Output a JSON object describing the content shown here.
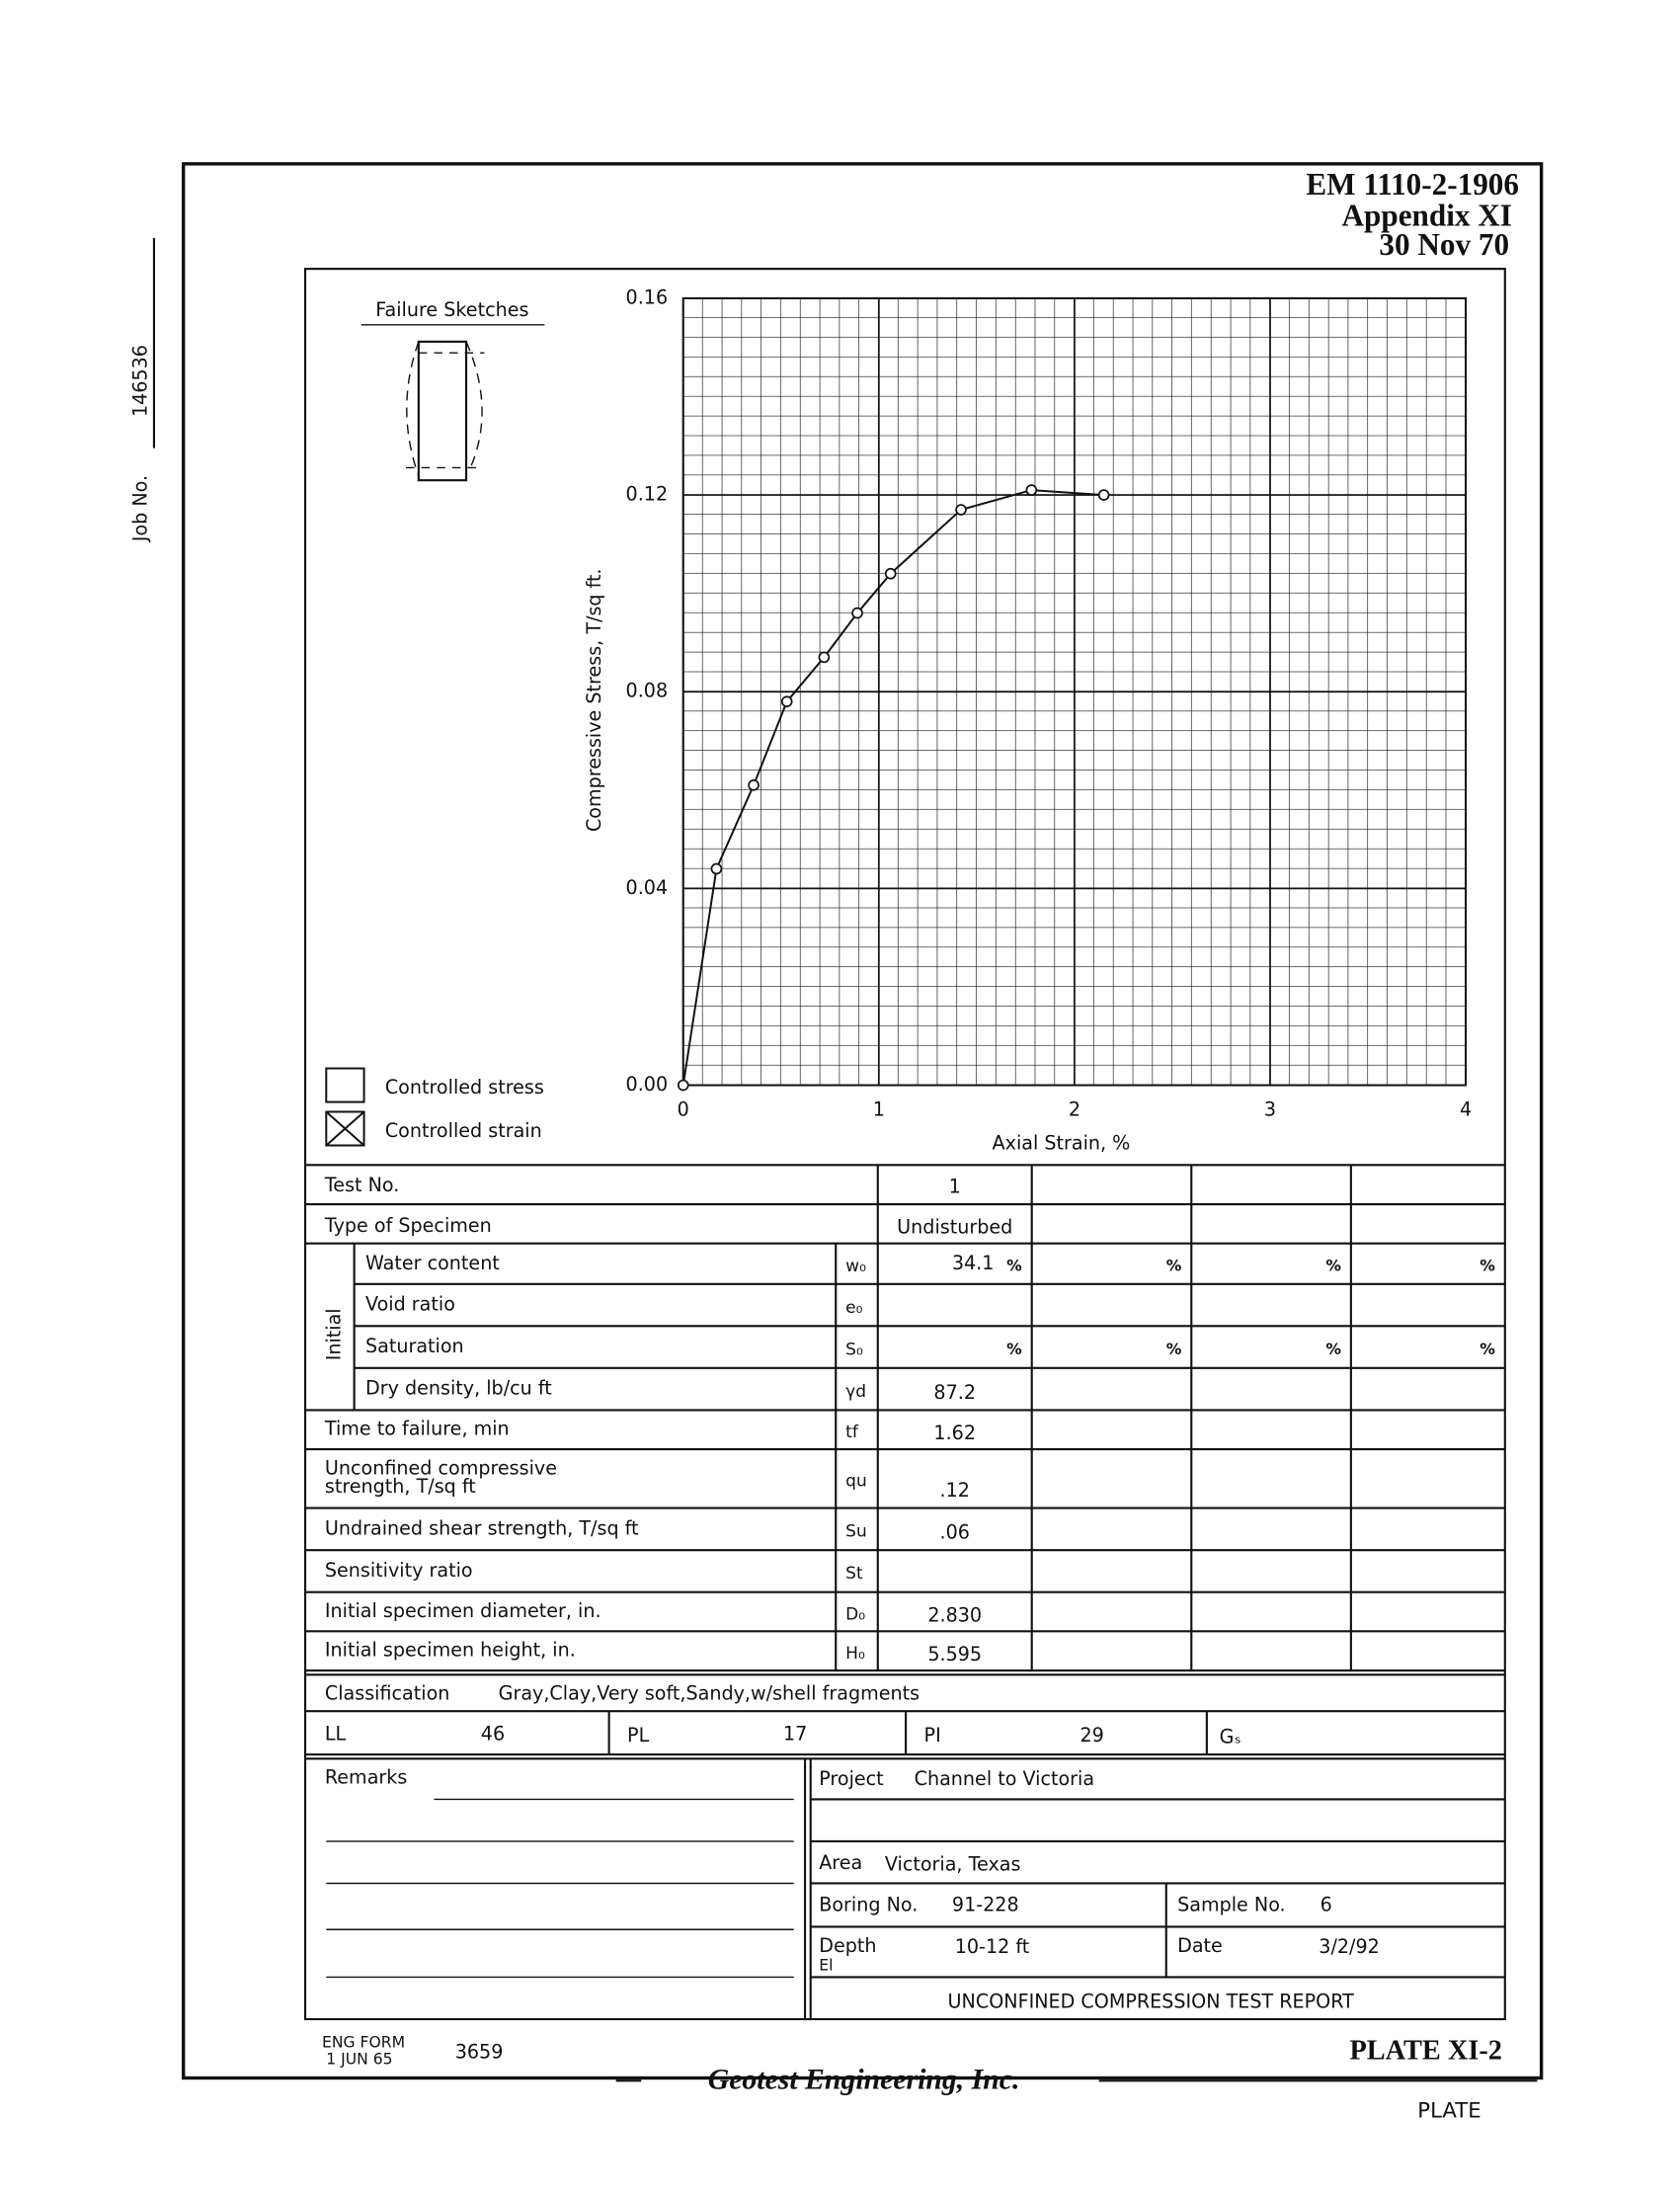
{
  "header": {
    "doc_no": "EM 1110-2-1906",
    "appendix": "Appendix XI",
    "date": "30 Nov 70"
  },
  "job": {
    "label": "Job No.",
    "number": "146536"
  },
  "failure_sketches": {
    "title": "Failure Sketches"
  },
  "test_mode": {
    "options": [
      {
        "label": "Controlled stress",
        "checked": false
      },
      {
        "label": "Controlled strain",
        "checked": true
      }
    ]
  },
  "chart_data": {
    "type": "line",
    "x_label": "Axial Strain, %",
    "y_label": "Compressive Stress, T/sq ft.",
    "x": [
      0,
      0.17,
      0.36,
      0.53,
      0.72,
      0.89,
      1.06,
      1.42,
      1.78,
      2.15
    ],
    "values": [
      0,
      0.044,
      0.061,
      0.078,
      0.087,
      0.096,
      0.104,
      0.117,
      0.121,
      0.12
    ],
    "color": "#111111",
    "xlim": [
      0,
      4
    ],
    "xticks": [
      0,
      1,
      2,
      3,
      4
    ],
    "ylim": [
      0,
      0.16
    ],
    "yticks": [
      {
        "value": 0,
        "label": "0.00"
      },
      0.04,
      0.08,
      0.12,
      0.16
    ],
    "grid": true
  },
  "table": {
    "test_no": {
      "label": "Test No.",
      "values": [
        "1"
      ]
    },
    "specimen_type": {
      "label": "Type of Specimen",
      "values": [
        "Undisturbed"
      ]
    },
    "initial": {
      "label": "Initial",
      "rows": [
        {
          "label": "Water content",
          "symbol": "w₀",
          "values": [
            "34.1"
          ],
          "unit": "%"
        },
        {
          "label": "Void ratio",
          "symbol": "e₀",
          "values": []
        },
        {
          "label": "Saturation",
          "symbol": "S₀",
          "values": [],
          "unit": "%"
        },
        {
          "label": "Dry density, lb/cu ft",
          "symbol": "γd",
          "values": [
            "87.2"
          ]
        }
      ]
    },
    "rows": [
      {
        "label": "Time to failure, min",
        "symbol": "tf",
        "values": [
          "1.62"
        ]
      },
      {
        "label_lines": [
          "Unconfined compressive",
          "strength, T/sq ft"
        ],
        "symbol": "qu",
        "values": [
          ".12"
        ]
      },
      {
        "label": "Undrained shear strength, T/sq ft",
        "symbol": "Su",
        "values": [
          ".06"
        ]
      },
      {
        "label": "Sensitivity ratio",
        "symbol": "St",
        "values": []
      },
      {
        "label": "Initial specimen diameter, in.",
        "symbol": "D₀",
        "values": [
          "2.830"
        ]
      },
      {
        "label": "Initial specimen height, in.",
        "symbol": "H₀",
        "values": [
          "5.595"
        ]
      }
    ]
  },
  "classification": {
    "label": "Classification",
    "value": "Gray,Clay,Very soft,Sandy,w/shell fragments"
  },
  "limits": {
    "ll": {
      "label": "LL",
      "value": "46"
    },
    "pl": {
      "label": "PL",
      "value": "17"
    },
    "pi": {
      "label": "PI",
      "value": "29"
    },
    "gs": {
      "label": "Gₛ"
    }
  },
  "remarks": {
    "label": "Remarks"
  },
  "project": {
    "project_label": "Project",
    "project": "Channel to Victoria",
    "area_label": "Area",
    "area": "Victoria, Texas",
    "boring_label": "Boring No.",
    "boring": "91-228",
    "sample_label": "Sample No.",
    "sample": "6",
    "depth_label": "Depth",
    "elevation_label": "El",
    "depth": "10-12 ft",
    "date_label": "Date",
    "date": "3/2/92",
    "report_title": "UNCONFINED COMPRESSION TEST REPORT"
  },
  "footer": {
    "form": "ENG FORM",
    "form_date": "1 JUN 65",
    "form_no": "3659",
    "plate": "PLATE XI-2",
    "company": "Geotest Engineering, Inc.",
    "plate_stamp": "PLATE"
  }
}
